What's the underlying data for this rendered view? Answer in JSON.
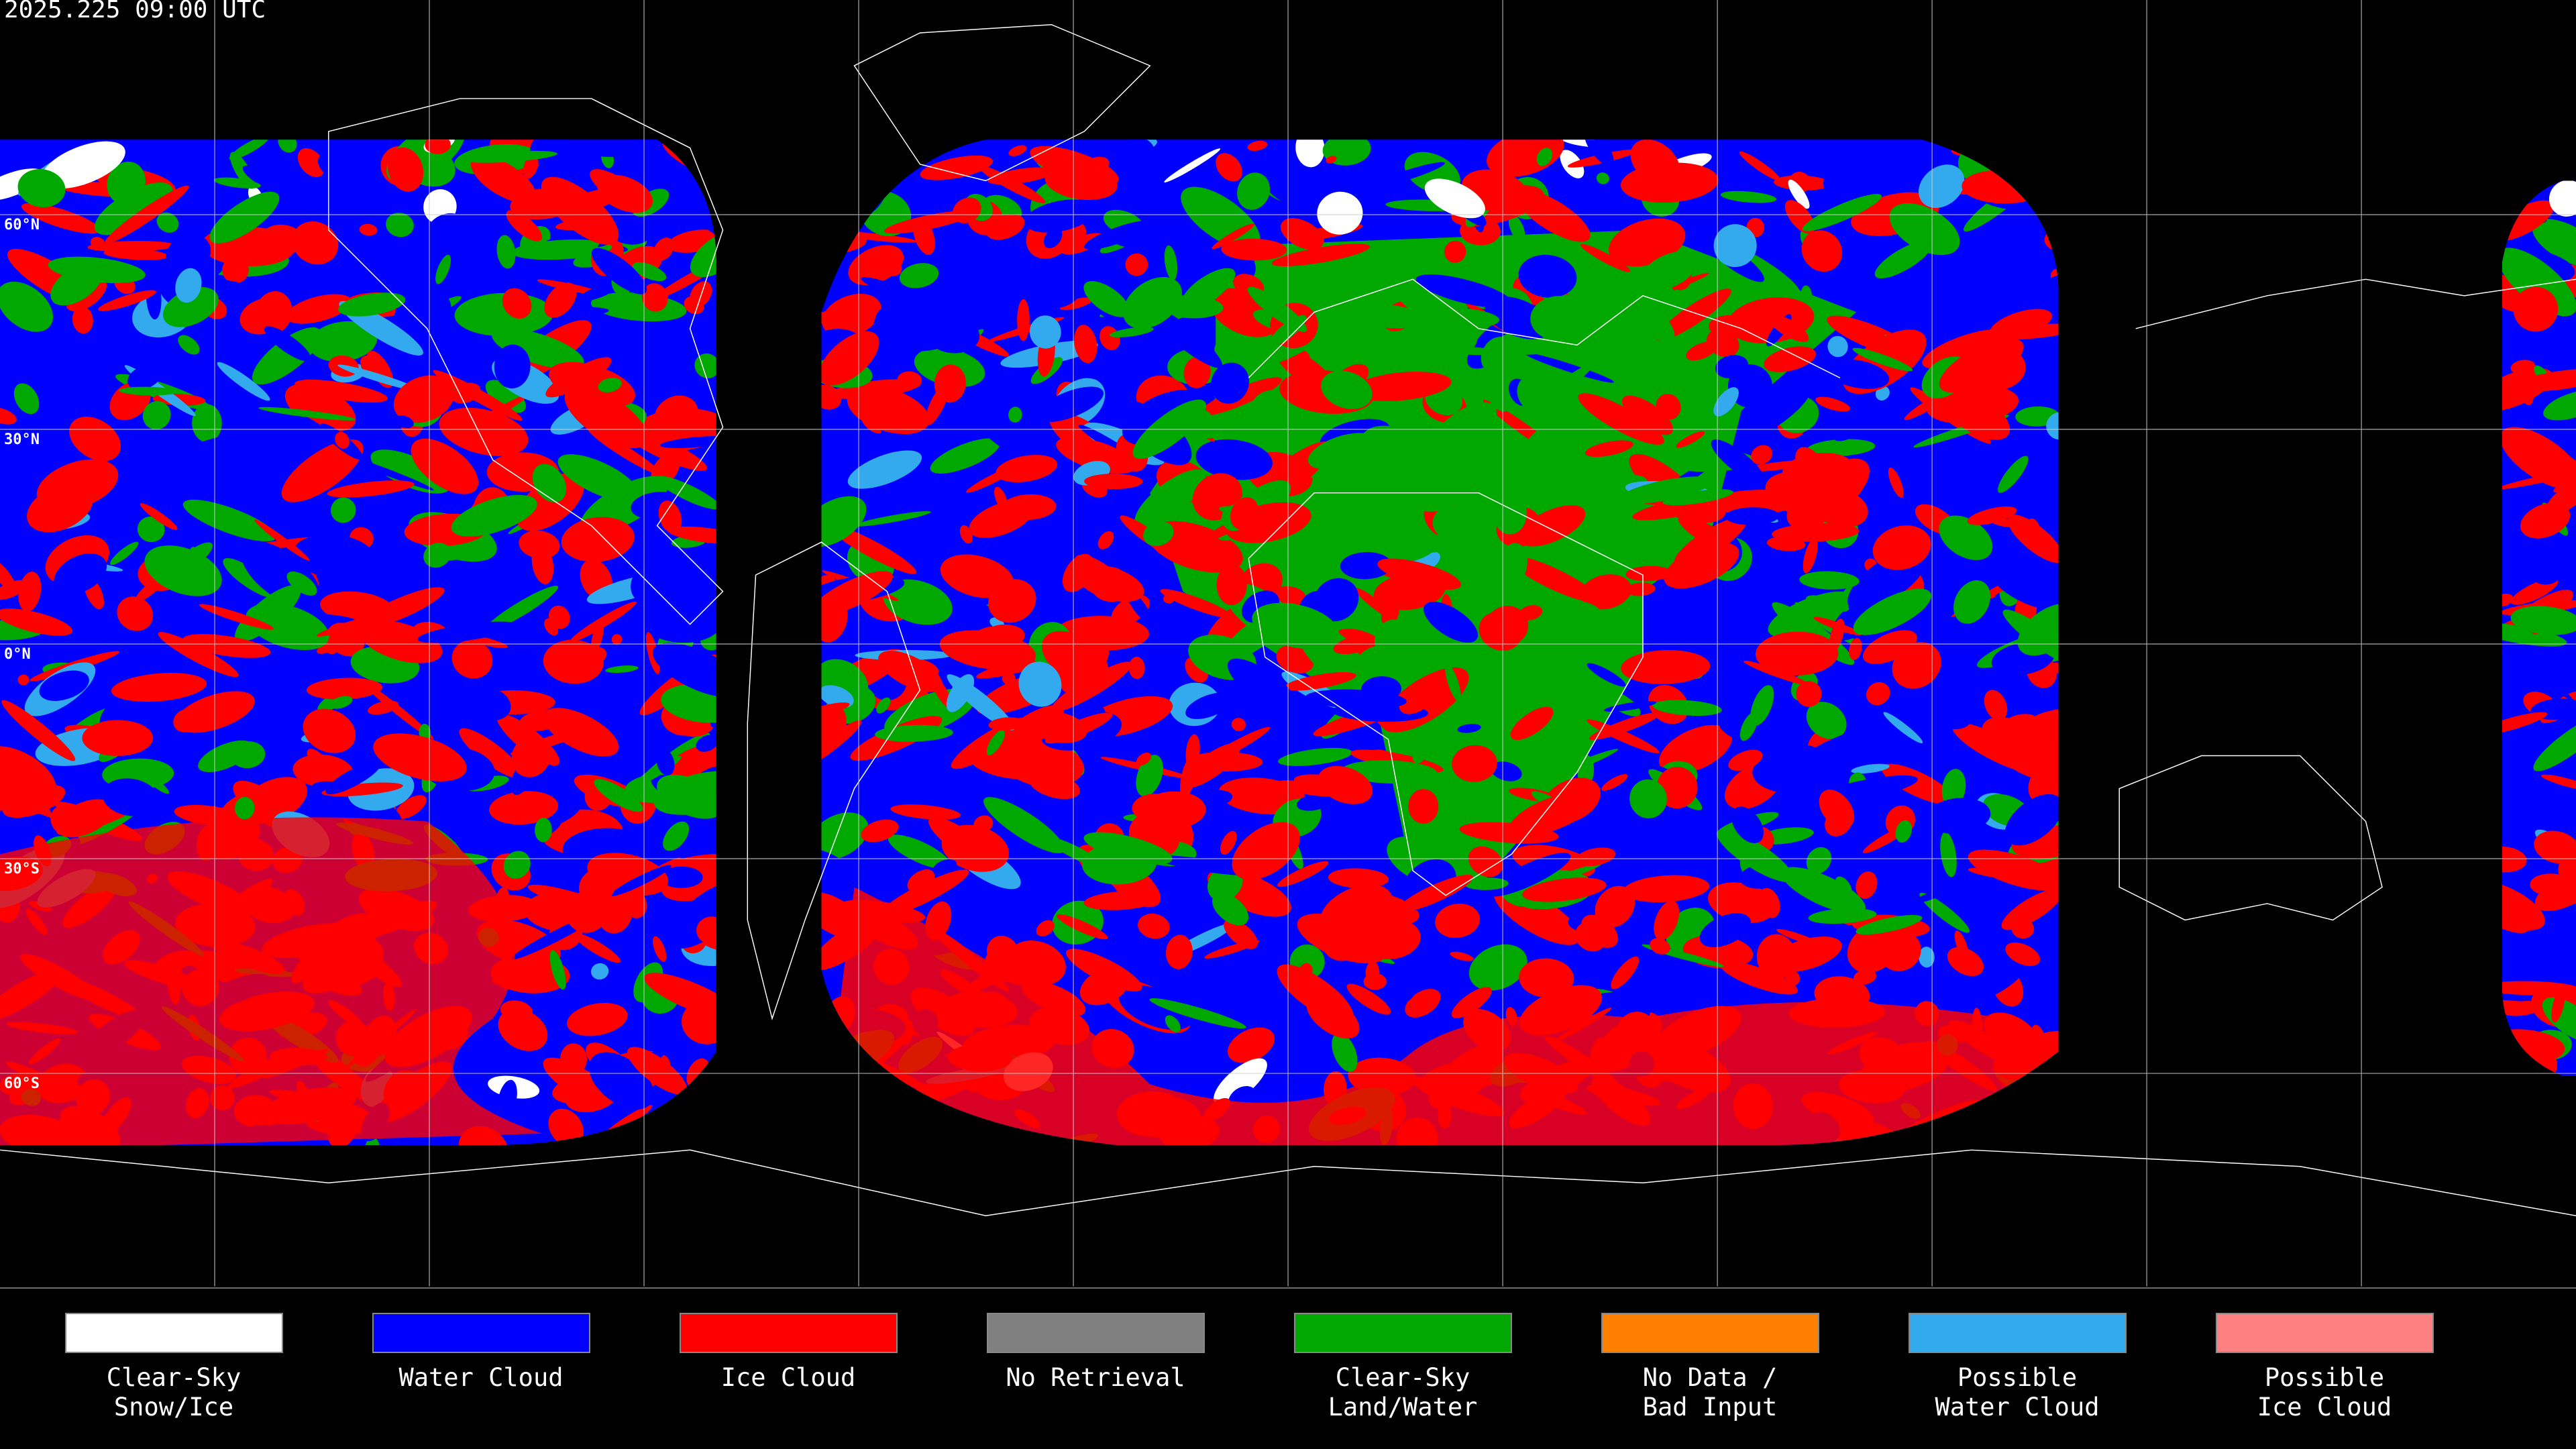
{
  "header": {
    "title": "2025.225 09:00 UTC"
  },
  "latitude_labels": [
    "60°N",
    "30°N",
    "0°N",
    "30°S",
    "60°S"
  ],
  "legend": [
    {
      "label": [
        "Clear-Sky",
        "Snow/Ice"
      ],
      "color": "#ffffff"
    },
    {
      "label": [
        "Water Cloud"
      ],
      "color": "#0000ff"
    },
    {
      "label": [
        "Ice Cloud"
      ],
      "color": "#ff0000"
    },
    {
      "label": [
        "No Retrieval"
      ],
      "color": "#808080"
    },
    {
      "label": [
        "Clear-Sky",
        "Land/Water"
      ],
      "color": "#00a800"
    },
    {
      "label": [
        "No Data /",
        "Bad Input"
      ],
      "color": "#ff8000"
    },
    {
      "label": [
        "Possible",
        "Water Cloud"
      ],
      "color": "#33aaee"
    },
    {
      "label": [
        "Possible",
        "Ice Cloud"
      ],
      "color": "#ff8080"
    }
  ]
}
